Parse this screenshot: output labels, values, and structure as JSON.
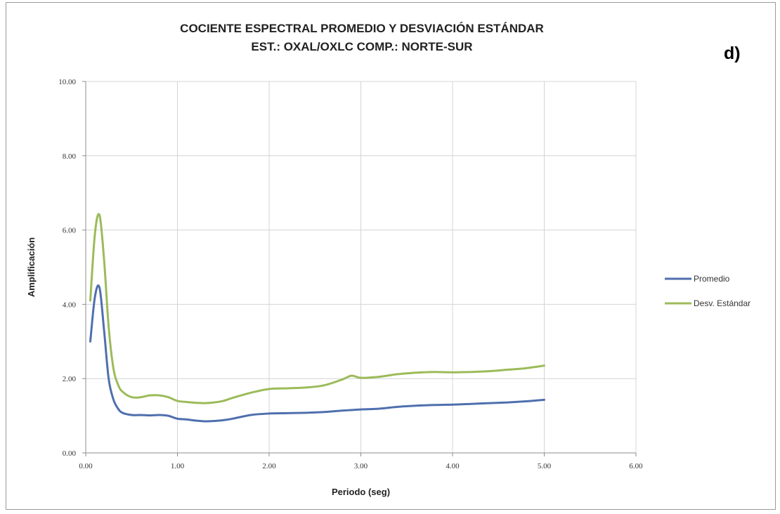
{
  "chart_data": {
    "type": "line",
    "title": "COCIENTE ESPECTRAL PROMEDIO Y DESVIACIÓN ESTÁNDAR",
    "subtitle": "EST.: OXAL/OXLC   COMP.: NORTE-SUR",
    "panel_label": "d)",
    "xlabel": "Periodo (seg)",
    "ylabel": "Amplificación",
    "xlim": [
      0,
      6
    ],
    "ylim": [
      0,
      10
    ],
    "xticks": [
      0,
      1,
      2,
      3,
      4,
      5,
      6
    ],
    "yticks": [
      0,
      2,
      4,
      6,
      8,
      10
    ],
    "xtick_labels": [
      "0.00",
      "1.00",
      "2.00",
      "3.00",
      "4.00",
      "5.00",
      "6.00"
    ],
    "ytick_labels": [
      "0.00",
      "2.00",
      "4.00",
      "6.00",
      "8.00",
      "10.00"
    ],
    "grid": true,
    "legend_position": "right",
    "series": [
      {
        "name": "Promedio",
        "color": "#4f6fae",
        "x": [
          0.05,
          0.1,
          0.15,
          0.2,
          0.25,
          0.3,
          0.35,
          0.4,
          0.5,
          0.6,
          0.7,
          0.8,
          0.9,
          1.0,
          1.1,
          1.2,
          1.3,
          1.4,
          1.5,
          1.6,
          1.8,
          2.0,
          2.2,
          2.4,
          2.6,
          2.8,
          3.0,
          3.2,
          3.4,
          3.6,
          3.8,
          4.0,
          4.2,
          4.4,
          4.6,
          4.8,
          5.0
        ],
        "values": [
          3.0,
          4.2,
          4.45,
          3.3,
          2.0,
          1.45,
          1.2,
          1.08,
          1.02,
          1.02,
          1.01,
          1.02,
          1.0,
          0.92,
          0.9,
          0.87,
          0.85,
          0.86,
          0.88,
          0.92,
          1.02,
          1.06,
          1.07,
          1.08,
          1.1,
          1.14,
          1.17,
          1.19,
          1.24,
          1.27,
          1.29,
          1.3,
          1.32,
          1.34,
          1.36,
          1.39,
          1.43
        ]
      },
      {
        "name": "Desv. Estándar",
        "color": "#9bbb59",
        "x": [
          0.05,
          0.1,
          0.15,
          0.2,
          0.25,
          0.3,
          0.35,
          0.4,
          0.5,
          0.6,
          0.7,
          0.8,
          0.9,
          1.0,
          1.1,
          1.2,
          1.3,
          1.4,
          1.5,
          1.6,
          1.8,
          2.0,
          2.2,
          2.4,
          2.6,
          2.8,
          2.9,
          3.0,
          3.2,
          3.4,
          3.6,
          3.8,
          4.0,
          4.2,
          4.4,
          4.6,
          4.8,
          5.0
        ],
        "values": [
          4.1,
          5.9,
          6.4,
          5.2,
          3.4,
          2.3,
          1.85,
          1.65,
          1.5,
          1.5,
          1.55,
          1.55,
          1.5,
          1.4,
          1.37,
          1.35,
          1.34,
          1.36,
          1.4,
          1.48,
          1.62,
          1.72,
          1.74,
          1.76,
          1.82,
          1.98,
          2.08,
          2.02,
          2.05,
          2.12,
          2.16,
          2.18,
          2.17,
          2.18,
          2.2,
          2.24,
          2.28,
          2.35
        ]
      }
    ]
  }
}
